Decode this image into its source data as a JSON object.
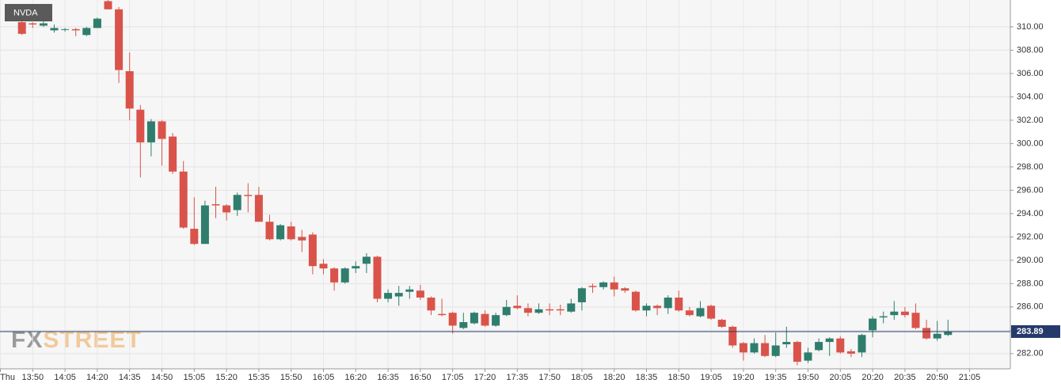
{
  "chart_data": {
    "type": "candlestick",
    "title": "NVDA",
    "watermark": [
      "FX",
      "STREET"
    ],
    "categories": [
      "Thu",
      null,
      null,
      "13:50",
      null,
      null,
      "14:05",
      null,
      null,
      "14:20",
      null,
      null,
      "14:35",
      null,
      null,
      "14:50",
      null,
      null,
      "15:05",
      null,
      null,
      "15:20",
      null,
      null,
      "15:35",
      null,
      null,
      "15:50",
      null,
      null,
      "16:05",
      null,
      null,
      "16:20",
      null,
      null,
      "16:35",
      null,
      null,
      "16:50",
      null,
      null,
      "17:05",
      null,
      null,
      "17:20",
      null,
      null,
      "17:35",
      null,
      null,
      "17:50",
      null,
      null,
      "18:05",
      null,
      null,
      "18:20",
      null,
      null,
      "18:35",
      null,
      null,
      "18:50",
      null,
      null,
      "19:05",
      null,
      null,
      "19:20",
      null,
      null,
      "19:35",
      null,
      null,
      "19:50",
      null,
      null,
      "20:05",
      null,
      null,
      "20:20",
      null,
      null,
      "20:35",
      null,
      null,
      "20:50",
      null,
      null,
      "21:05",
      null,
      null
    ],
    "open": [
      null,
      null,
      310.4,
      310.3,
      310.1,
      309.7,
      309.8,
      309.8,
      309.3,
      309.9,
      312.2,
      311.5,
      306.2,
      302.9,
      300.1,
      301.9,
      300.6,
      297.6,
      292.7,
      291.4,
      294.8,
      294.7,
      294.3,
      295.6,
      295.6,
      293.3,
      291.8,
      292.9,
      292.0,
      292.2,
      289.7,
      289.3,
      288.1,
      289.3,
      289.7,
      290.3,
      286.7,
      286.9,
      287.3,
      287.4,
      286.8,
      285.4,
      285.5,
      284.2,
      284.6,
      285.4,
      284.4,
      285.3,
      286.1,
      285.9,
      285.5,
      285.8,
      285.8,
      285.6,
      286.4,
      287.8,
      287.7,
      288.1,
      287.6,
      287.3,
      285.7,
      286.1,
      285.9,
      286.8,
      285.7,
      285.2,
      286.1,
      284.9,
      284.3,
      282.9,
      282.1,
      282.9,
      281.8,
      282.8,
      283.0,
      281.4,
      282.3,
      283.0,
      283.3,
      282.2,
      282.1,
      284.0,
      285.1,
      285.3,
      285.6,
      285.5,
      284.2,
      283.3,
      283.6,
      null,
      null,
      null,
      null
    ],
    "high": [
      null,
      null,
      310.6,
      310.4,
      310.6,
      310.2,
      309.9,
      309.9,
      310.0,
      310.8,
      312.3,
      311.7,
      307.8,
      303.3,
      302.1,
      302.0,
      300.9,
      298.5,
      295.4,
      295.1,
      296.3,
      294.8,
      295.8,
      296.6,
      296.3,
      293.9,
      293.1,
      293.3,
      292.6,
      292.4,
      290.1,
      289.4,
      289.4,
      289.9,
      290.6,
      290.4,
      287.5,
      287.8,
      287.8,
      287.9,
      286.9,
      286.7,
      285.6,
      285.5,
      285.6,
      285.7,
      285.5,
      286.6,
      287.0,
      286.3,
      286.3,
      286.3,
      286.2,
      286.7,
      287.7,
      288.0,
      288.2,
      288.6,
      287.7,
      287.4,
      286.3,
      286.2,
      287.0,
      287.4,
      286.0,
      286.5,
      286.2,
      285.0,
      284.4,
      283.0,
      283.3,
      283.6,
      283.8,
      284.3,
      283.1,
      282.5,
      283.3,
      283.4,
      283.5,
      282.4,
      283.7,
      285.2,
      285.6,
      286.5,
      286.0,
      286.3,
      284.9,
      284.8,
      284.9,
      null,
      null,
      null,
      null
    ],
    "low": [
      null,
      null,
      309.3,
      309.9,
      310.0,
      309.5,
      309.6,
      309.2,
      309.2,
      309.9,
      311.5,
      305.2,
      302.0,
      297.1,
      298.9,
      298.1,
      297.4,
      292.7,
      291.3,
      291.4,
      293.6,
      293.4,
      293.8,
      294.1,
      293.3,
      291.7,
      291.7,
      291.7,
      290.7,
      288.8,
      288.8,
      287.4,
      288.0,
      288.9,
      288.9,
      286.4,
      286.4,
      286.1,
      286.7,
      286.6,
      285.3,
      285.2,
      283.7,
      284.1,
      284.5,
      284.3,
      284.3,
      285.2,
      285.8,
      285.2,
      285.4,
      285.3,
      285.3,
      285.5,
      285.7,
      287.2,
      287.5,
      286.9,
      287.2,
      285.6,
      285.2,
      285.3,
      285.4,
      285.6,
      285.2,
      285.1,
      284.9,
      284.2,
      282.5,
      281.4,
      282.0,
      281.7,
      281.7,
      282.5,
      281.0,
      281.2,
      282.2,
      281.8,
      282.0,
      281.7,
      281.7,
      283.4,
      284.6,
      284.9,
      285.1,
      284.1,
      283.2,
      283.1,
      283.5,
      null,
      null,
      null,
      null
    ],
    "close": [
      null,
      null,
      309.4,
      310.2,
      310.3,
      309.9,
      309.8,
      309.7,
      309.9,
      310.7,
      311.5,
      306.3,
      303.0,
      300.1,
      301.9,
      300.4,
      297.6,
      292.8,
      291.4,
      294.7,
      294.7,
      294.1,
      295.6,
      295.5,
      293.3,
      291.8,
      293.0,
      291.8,
      291.7,
      289.5,
      289.3,
      288.1,
      289.3,
      289.5,
      290.3,
      286.7,
      287.2,
      287.2,
      287.5,
      286.8,
      285.7,
      285.3,
      284.4,
      284.7,
      285.5,
      284.4,
      285.3,
      286.0,
      285.9,
      285.5,
      285.8,
      285.7,
      285.7,
      286.3,
      287.6,
      287.7,
      288.1,
      287.5,
      287.4,
      285.7,
      286.1,
      285.9,
      286.8,
      285.7,
      285.3,
      285.9,
      285.0,
      284.3,
      282.7,
      282.1,
      282.9,
      281.8,
      282.7,
      283.0,
      281.3,
      282.1,
      283.0,
      283.3,
      282.1,
      282.0,
      283.6,
      285.0,
      285.2,
      285.6,
      285.3,
      284.2,
      283.3,
      283.7,
      283.89,
      null,
      null,
      null,
      null
    ],
    "up_color": "#2f7d6d",
    "down_color": "#d9534a",
    "current": 283.89,
    "current_color": "#253a6b",
    "ylim": [
      280.7,
      312.3
    ],
    "yticks": [
      {
        "value": 282,
        "label": "282.00"
      },
      {
        "value": 284,
        "label": "284.00"
      },
      {
        "value": 286,
        "label": "286.00"
      },
      {
        "value": 288,
        "label": "288.00"
      },
      {
        "value": 290,
        "label": "290.00"
      },
      {
        "value": 292,
        "label": "292.00"
      },
      {
        "value": 294,
        "label": "294.00"
      },
      {
        "value": 296,
        "label": "296.00"
      },
      {
        "value": 298,
        "label": "298.00"
      },
      {
        "value": 300,
        "label": "300.00"
      },
      {
        "value": 302,
        "label": "302.00"
      },
      {
        "value": 304,
        "label": "304.00"
      },
      {
        "value": 306,
        "label": "306.00"
      },
      {
        "value": 308,
        "label": "308.00"
      },
      {
        "value": 310,
        "label": "310.00"
      }
    ],
    "grid": true
  }
}
